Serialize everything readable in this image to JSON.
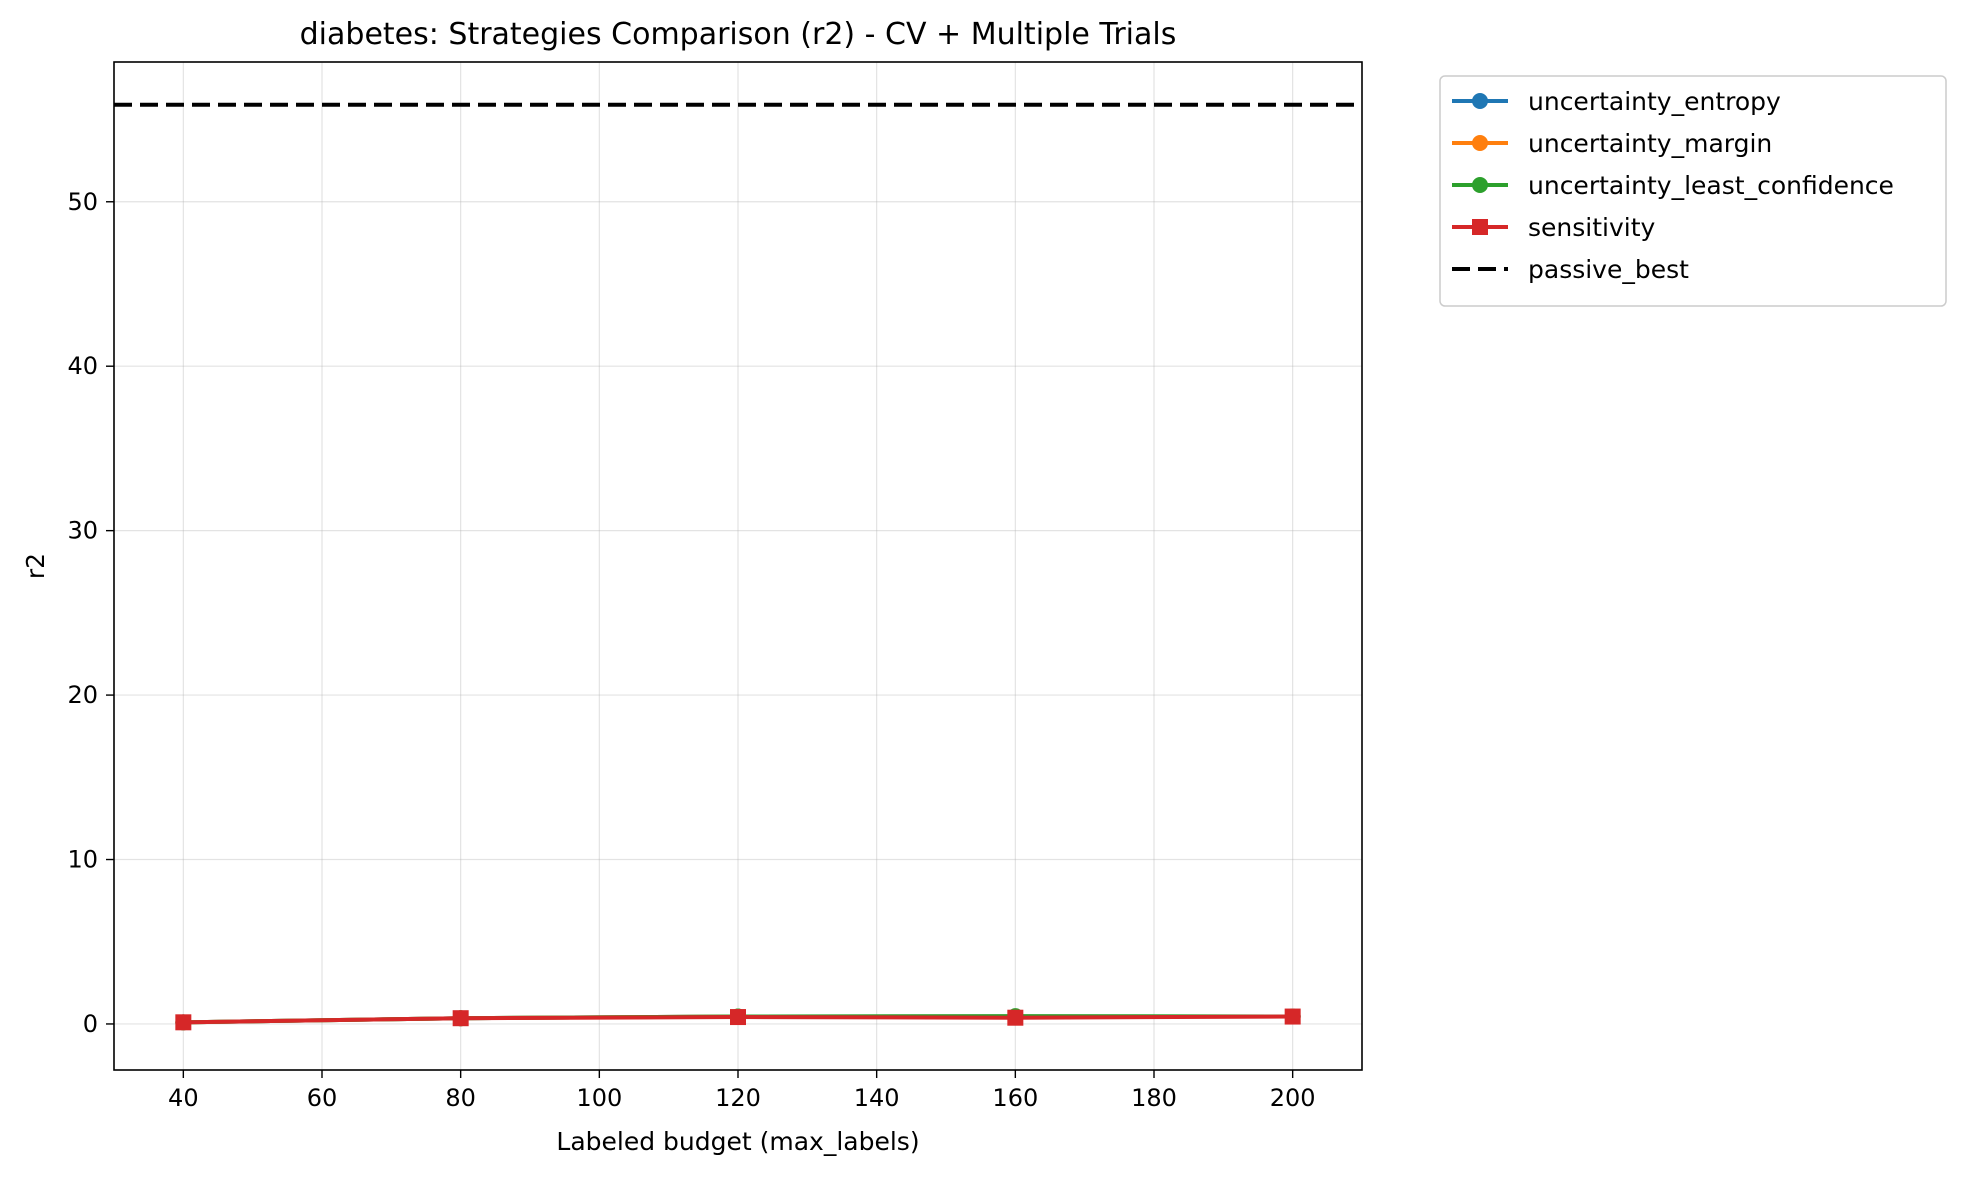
{
  "chart_data": {
    "type": "line",
    "title": "diabetes: Strategies Comparison (r2) - CV + Multiple Trials",
    "xlabel": "Labeled budget (max_labels)",
    "ylabel": "r2",
    "x": [
      40,
      80,
      120,
      160,
      200
    ],
    "xlim": [
      30,
      210
    ],
    "ylim": [
      -2.8,
      58.5
    ],
    "xticks": [
      40,
      60,
      80,
      100,
      120,
      140,
      160,
      180,
      200
    ],
    "yticks": [
      0,
      10,
      20,
      30,
      40,
      50
    ],
    "grid": true,
    "legend_position": "outside-top-right",
    "series": [
      {
        "name": "uncertainty_entropy",
        "color": "#1f77b4",
        "marker": "circle",
        "values": [
          0.1,
          0.35,
          0.45,
          0.45,
          0.45
        ]
      },
      {
        "name": "uncertainty_margin",
        "color": "#ff7f0e",
        "marker": "circle",
        "values": [
          0.1,
          0.35,
          0.45,
          0.45,
          0.45
        ]
      },
      {
        "name": "uncertainty_least_confidence",
        "color": "#2ca02c",
        "marker": "circle",
        "values": [
          0.1,
          0.35,
          0.45,
          0.48,
          0.45
        ]
      },
      {
        "name": "sensitivity",
        "color": "#d62728",
        "marker": "square",
        "values": [
          0.1,
          0.35,
          0.42,
          0.38,
          0.45
        ]
      }
    ],
    "reference_lines": [
      {
        "name": "passive_best",
        "color": "#000000",
        "style": "dashed",
        "value": 55.9
      }
    ]
  }
}
